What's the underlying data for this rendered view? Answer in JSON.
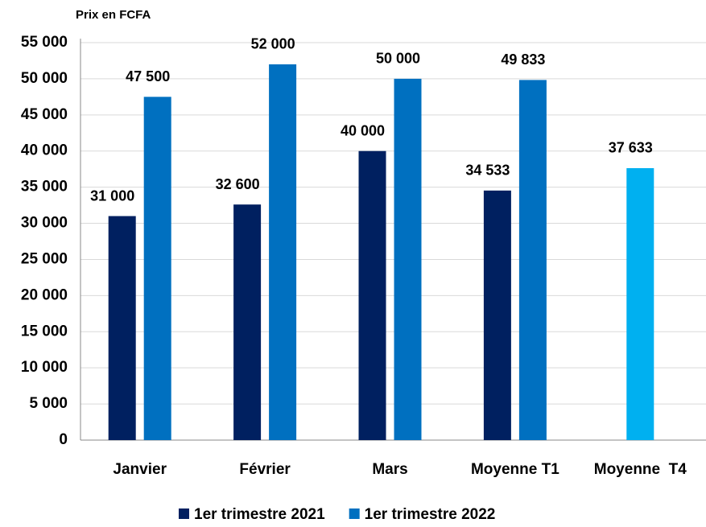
{
  "chart_data": {
    "type": "bar",
    "y_label": "Prix en FCFA",
    "categories": [
      "Janvier",
      "Février",
      "Mars",
      "Moyenne T1",
      "Moyenne  T4"
    ],
    "series": [
      {
        "name": "1er trimestre 2021",
        "color": "#002060",
        "values": [
          31000,
          32600,
          40000,
          34533,
          null
        ],
        "value_labels": [
          "31 000",
          "32 600",
          "40 000",
          "34 533",
          null
        ]
      },
      {
        "name": "1er trimestre 2022",
        "color": "#0070c0",
        "colors": [
          "#0070c0",
          "#0070c0",
          "#0070c0",
          "#0070c0",
          "#00b0f0"
        ],
        "values": [
          47500,
          52000,
          50000,
          49833,
          37633
        ],
        "value_labels": [
          "47 500",
          "52 000",
          "50 000",
          "49 833",
          "37 633"
        ]
      }
    ],
    "ylim": [
      0,
      55000
    ],
    "yticks": [
      0,
      {
        "value": 5000,
        "label": "5 000"
      },
      {
        "value": 10000,
        "label": "10 000"
      },
      {
        "value": 15000,
        "label": "15 000"
      },
      {
        "value": 20000,
        "label": "20 000"
      },
      {
        "value": 25000,
        "label": "25 000"
      },
      {
        "value": 30000,
        "label": "30 000"
      },
      {
        "value": 35000,
        "label": "35 000"
      },
      {
        "value": 40000,
        "label": "40 000"
      },
      {
        "value": 45000,
        "label": "45 000"
      },
      {
        "value": 50000,
        "label": "50 000"
      },
      {
        "value": 55000,
        "label": "55 000"
      }
    ],
    "grid": true,
    "legend": "bottom"
  }
}
